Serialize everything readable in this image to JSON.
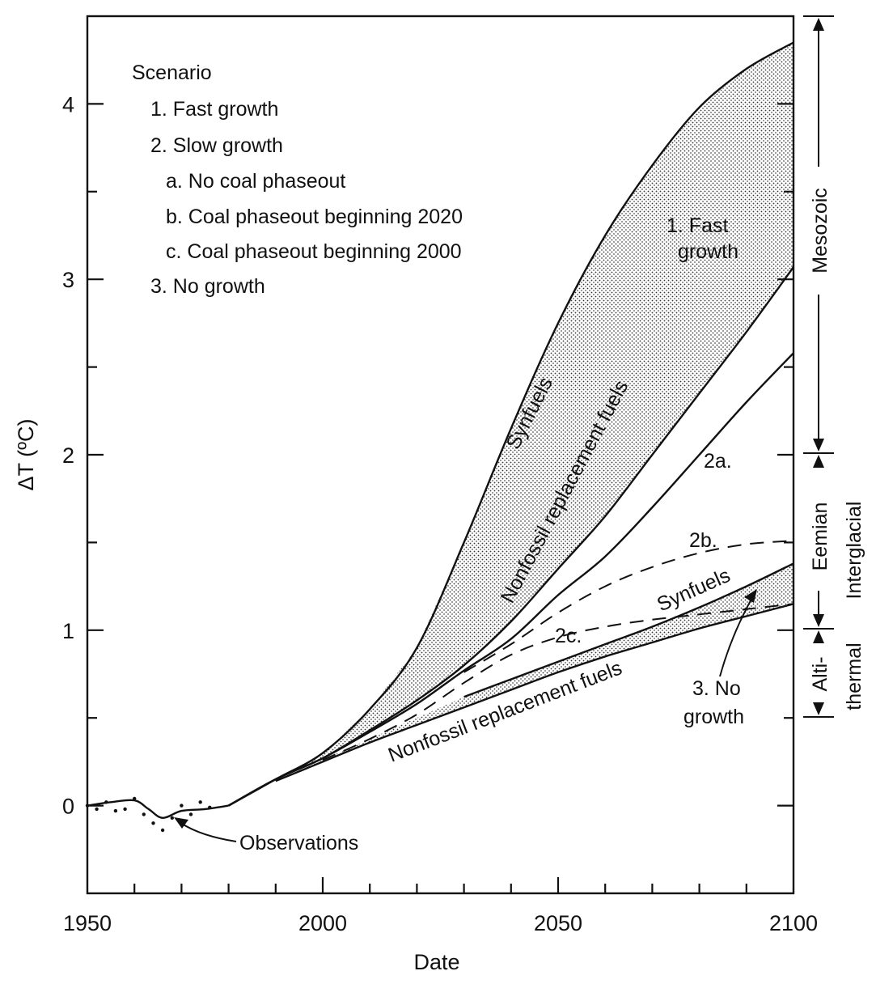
{
  "chart_data": {
    "type": "line",
    "xlabel": "Date",
    "ylabel": "ΔT (ºC)",
    "xlim": [
      1950,
      2100
    ],
    "ylim": [
      -0.5,
      4.5
    ],
    "x_ticks": [
      1950,
      2000,
      2050,
      2100
    ],
    "y_ticks": [
      0,
      1,
      2,
      3,
      4
    ],
    "legend": {
      "placement": "top-left",
      "title": "Scenario",
      "items": [
        "1. Fast growth",
        "2. Slow growth",
        "a. No coal phaseout",
        "b. Coal phaseout beginning 2020",
        "c. Coal phaseout beginning 2000",
        "3. No growth"
      ]
    },
    "series": [
      {
        "name": "Synfuels",
        "style": "solid",
        "x": [
          1980,
          1990,
          2000,
          2010,
          2020,
          2030,
          2040,
          2050,
          2060,
          2070,
          2080,
          2090,
          2100
        ],
        "y": [
          0.0,
          0.15,
          0.3,
          0.55,
          0.9,
          1.5,
          2.15,
          2.75,
          3.25,
          3.65,
          3.98,
          4.2,
          4.35
        ]
      },
      {
        "name": "Nonfossil replacement fuels",
        "style": "solid",
        "x": [
          1980,
          1990,
          2000,
          2010,
          2020,
          2030,
          2040,
          2050,
          2060,
          2070,
          2080,
          2090,
          2100
        ],
        "y": [
          0.0,
          0.15,
          0.27,
          0.43,
          0.6,
          0.8,
          1.05,
          1.35,
          1.65,
          2.0,
          2.35,
          2.7,
          3.07
        ]
      },
      {
        "name": "2a.",
        "style": "solid",
        "x": [
          1980,
          1990,
          2000,
          2010,
          2020,
          2030,
          2040,
          2050,
          2060,
          2070,
          2080,
          2090,
          2100
        ],
        "y": [
          0.0,
          0.15,
          0.27,
          0.42,
          0.58,
          0.77,
          0.95,
          1.2,
          1.42,
          1.7,
          2.0,
          2.3,
          2.58
        ]
      },
      {
        "name": "2b.",
        "style": "dashed",
        "x": [
          2030,
          2040,
          2050,
          2060,
          2070,
          2080,
          2090,
          2100
        ],
        "y": [
          0.76,
          0.92,
          1.1,
          1.25,
          1.36,
          1.44,
          1.49,
          1.51
        ]
      },
      {
        "name": "2c.",
        "style": "dashed",
        "x": [
          2000,
          2010,
          2020,
          2030,
          2040,
          2050,
          2060,
          2070,
          2080,
          2090,
          2100
        ],
        "y": [
          0.26,
          0.38,
          0.52,
          0.7,
          0.86,
          0.96,
          1.02,
          1.06,
          1.09,
          1.12,
          1.15
        ]
      },
      {
        "name": "Synfuels",
        "style": "solid",
        "x": [
          2030,
          2040,
          2050,
          2060,
          2070,
          2080,
          2090,
          2100
        ],
        "y": [
          0.62,
          0.72,
          0.82,
          0.92,
          1.02,
          1.13,
          1.25,
          1.38
        ]
      },
      {
        "name": "Nonfossil replacement fuels",
        "style": "solid",
        "x": [
          1990,
          2000,
          2010,
          2020,
          2030,
          2040,
          2050,
          2060,
          2070,
          2080,
          2090,
          2100
        ],
        "y": [
          0.14,
          0.25,
          0.36,
          0.46,
          0.56,
          0.66,
          0.76,
          0.85,
          0.93,
          1.01,
          1.08,
          1.15
        ]
      },
      {
        "name": "Observations",
        "style": "dotted",
        "x": [
          1950,
          1952,
          1954,
          1956,
          1958,
          1960,
          1962,
          1964,
          1966,
          1968,
          1970,
          1972,
          1974,
          1976
        ],
        "y": [
          0.0,
          -0.02,
          0.02,
          -0.03,
          -0.02,
          0.04,
          -0.05,
          -0.1,
          -0.14,
          -0.07,
          0.0,
          -0.05,
          0.02,
          -0.01
        ]
      },
      {
        "name": "Observations",
        "style": "solid",
        "x": [
          1950,
          1955,
          1960,
          1963,
          1966,
          1970,
          1975,
          1980
        ],
        "y": [
          0.0,
          0.02,
          0.03,
          -0.02,
          -0.07,
          -0.03,
          -0.02,
          0.0
        ]
      }
    ],
    "bands": [
      {
        "between": [
          0,
          1
        ],
        "fill": "stipple"
      },
      {
        "between": [
          5,
          6
        ],
        "fill": "stipple"
      }
    ],
    "annotations": {
      "fast_growth": [
        "1. Fast",
        "growth"
      ],
      "synfuels_upper": "Synfuels",
      "nonfossil_upper": "Nonfossil replacement fuels",
      "two_a": "2a.",
      "two_b": "2b.",
      "two_c": "2c.",
      "synfuels_lower": "Synfuels",
      "nonfossil_lower": "Nonfossil replacement fuels",
      "no_growth": [
        "3. No",
        "growth"
      ],
      "observations": "Observations"
    },
    "right_axis": {
      "labels": [
        {
          "text": "Mesozoic",
          "range": [
            2,
            4.5
          ]
        },
        {
          "text": "Eemian",
          "range": [
            1,
            2
          ]
        },
        {
          "text": "Interglacial",
          "range": [
            0.5,
            2
          ]
        },
        {
          "text": "Alti-",
          "range": [
            0.5,
            1
          ]
        },
        {
          "text": "thermal",
          "range": [
            0.5,
            1
          ]
        }
      ]
    }
  }
}
